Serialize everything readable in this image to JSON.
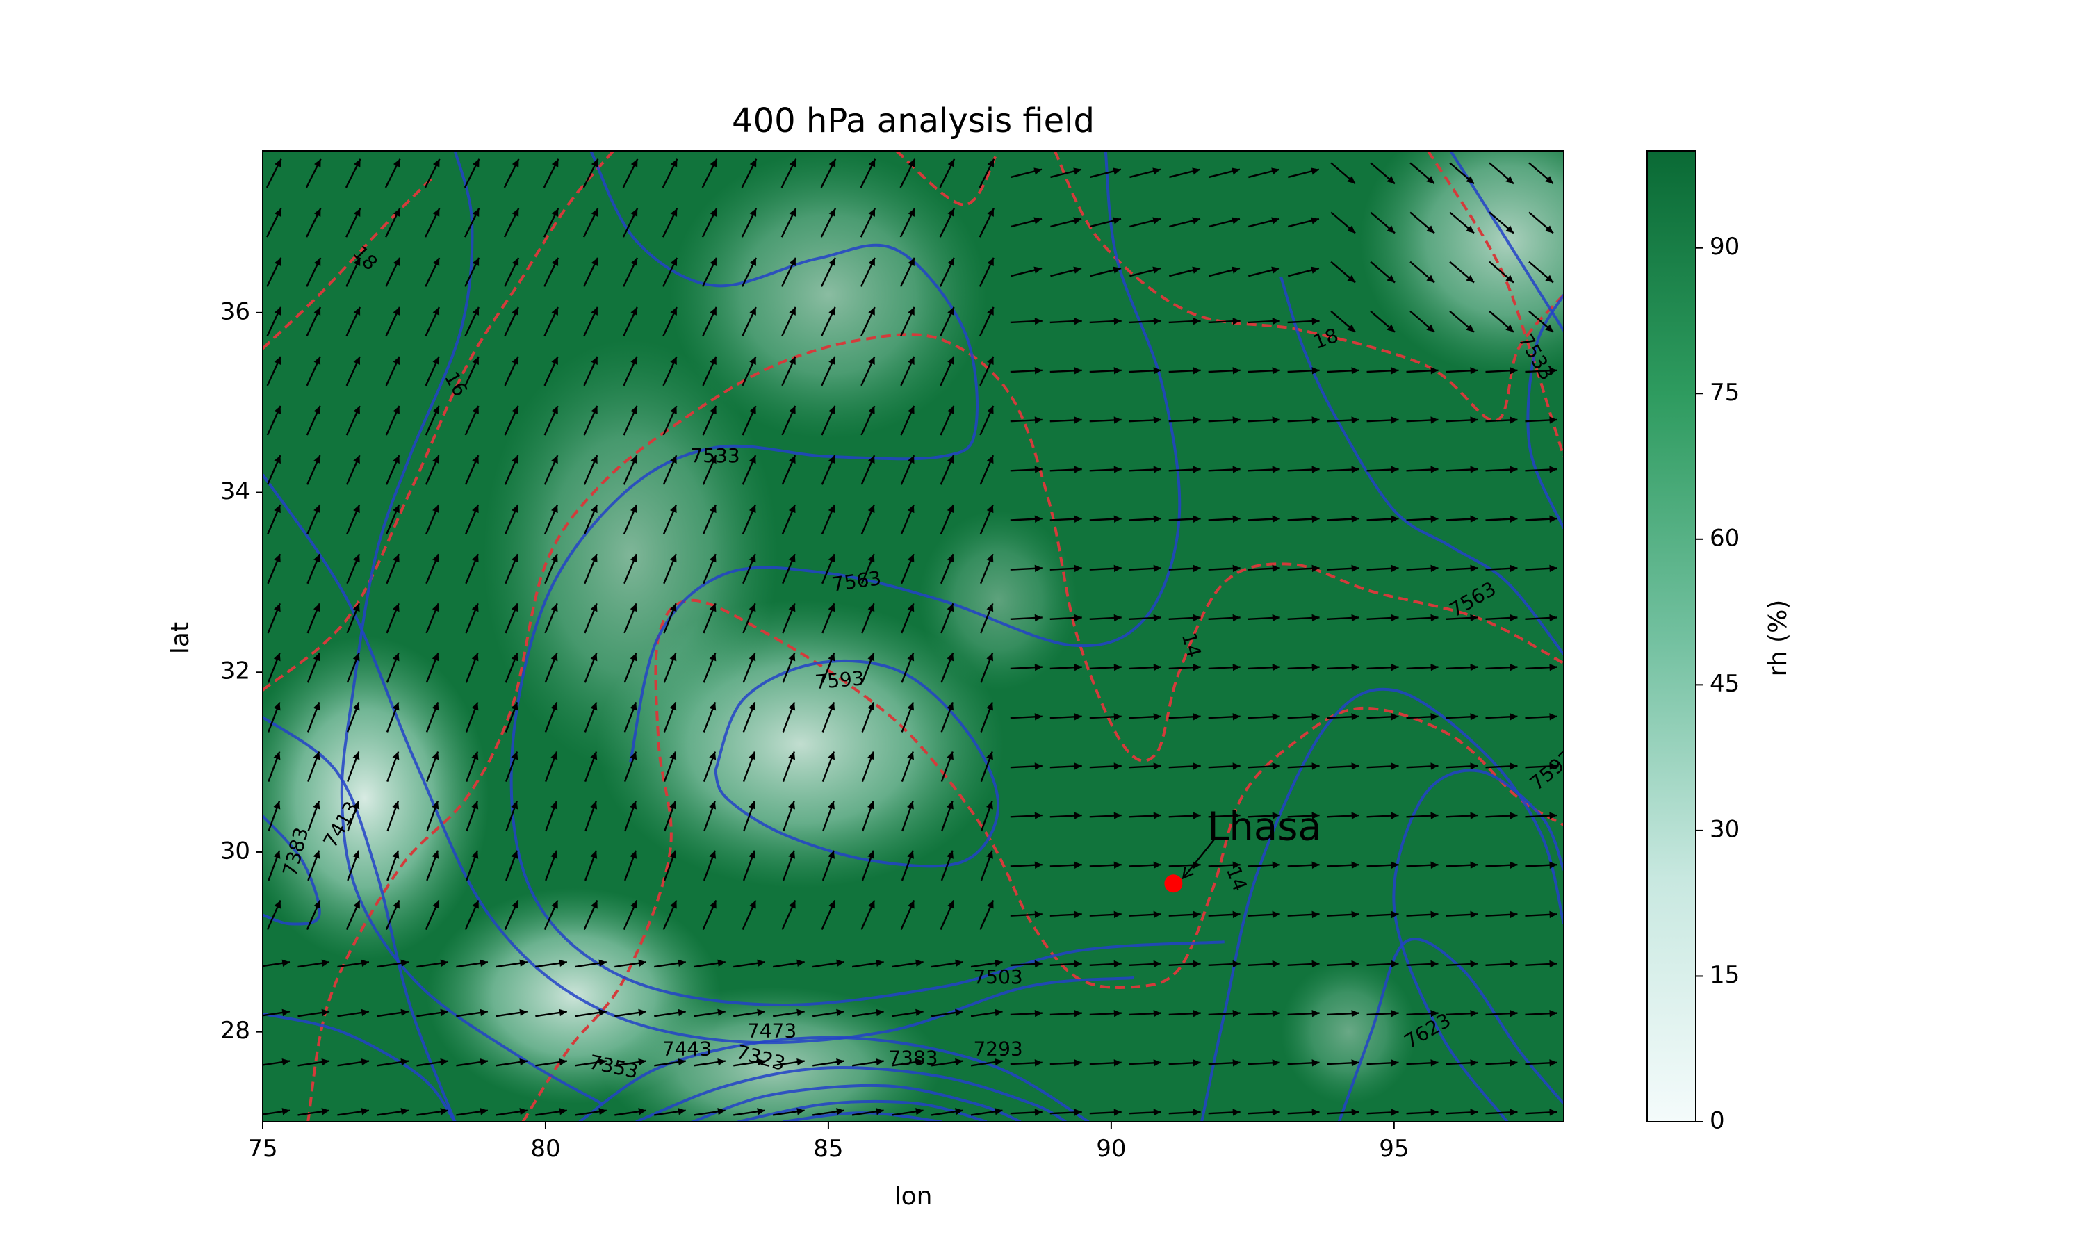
{
  "chart_data": {
    "type": "heatmap",
    "title": "400 hPa analysis field",
    "xlabel": "lon",
    "ylabel": "lat",
    "xlim": [
      75,
      98
    ],
    "ylim": [
      27,
      37.8
    ],
    "xticks": [
      {
        "value": 75,
        "label": "75"
      },
      {
        "value": 80,
        "label": "80"
      },
      {
        "value": 85,
        "label": "85"
      },
      {
        "value": 90,
        "label": "90"
      },
      {
        "value": 95,
        "label": "95"
      }
    ],
    "yticks": [
      {
        "value": 28,
        "label": "28"
      },
      {
        "value": 30,
        "label": "30"
      },
      {
        "value": 32,
        "label": "32"
      },
      {
        "value": 34,
        "label": "34"
      },
      {
        "value": 36,
        "label": "36"
      }
    ],
    "colorbar": {
      "label": "rh (%)",
      "range": [
        0,
        100
      ],
      "colors": [
        "#f4fbfb",
        "#c8e8e0",
        "#72c09f",
        "#2e9b5f",
        "#0a6a35"
      ],
      "ticks": [
        {
          "value": 0,
          "label": "0"
        },
        {
          "value": 15,
          "label": "15"
        },
        {
          "value": 30,
          "label": "30"
        },
        {
          "value": 45,
          "label": "45"
        },
        {
          "value": 60,
          "label": "60"
        },
        {
          "value": 75,
          "label": "75"
        },
        {
          "value": 90,
          "label": "90"
        }
      ]
    },
    "rh_blobs": [
      {
        "lon": 84.5,
        "lat": 31.2,
        "rlon": 3.6,
        "rlat": 1.6,
        "depth": 0.8
      },
      {
        "lon": 81.5,
        "lat": 33.3,
        "rlon": 2.6,
        "rlat": 2.4,
        "depth": 0.5
      },
      {
        "lon": 85.0,
        "lat": 36.2,
        "rlon": 2.8,
        "rlat": 1.6,
        "depth": 0.55
      },
      {
        "lon": 76.8,
        "lat": 30.6,
        "rlon": 2.2,
        "rlat": 1.8,
        "depth": 0.9
      },
      {
        "lon": 80.5,
        "lat": 28.4,
        "rlon": 2.6,
        "rlat": 1.2,
        "depth": 0.85
      },
      {
        "lon": 84.0,
        "lat": 27.6,
        "rlon": 3.0,
        "rlat": 0.9,
        "depth": 0.65
      },
      {
        "lon": 97.0,
        "lat": 36.8,
        "rlon": 2.6,
        "rlat": 1.5,
        "depth": 0.7
      },
      {
        "lon": 94.2,
        "lat": 28.0,
        "rlon": 1.2,
        "rlat": 0.8,
        "depth": 0.4
      },
      {
        "lon": 88.0,
        "lat": 32.8,
        "rlon": 1.4,
        "rlat": 1.0,
        "depth": 0.35
      }
    ],
    "geopotential_contours": {
      "color": "#2342c8",
      "lines": [
        [
          [
            78.4,
            37.8
          ],
          [
            78.7,
            37.0
          ],
          [
            78.5,
            35.8
          ],
          [
            77.6,
            34.4
          ],
          [
            77.0,
            33.3
          ],
          [
            76.6,
            31.8
          ],
          [
            76.4,
            30.6
          ],
          [
            76.7,
            29.5
          ],
          [
            77.8,
            28.5
          ],
          [
            79.6,
            27.7
          ],
          [
            81.0,
            27.2
          ]
        ],
        [
          [
            75,
            34.2
          ],
          [
            76.5,
            32.8
          ],
          [
            77.7,
            31.0
          ],
          [
            79.0,
            29.3
          ],
          [
            80.8,
            28.3
          ],
          [
            83.2,
            27.9
          ],
          [
            86.0,
            28.0
          ],
          [
            88.5,
            28.5
          ],
          [
            90.4,
            28.6
          ]
        ],
        [
          [
            80.8,
            37.8
          ],
          [
            81.6,
            36.8
          ],
          [
            83.0,
            36.3
          ],
          [
            84.8,
            36.6
          ],
          [
            86.2,
            36.7
          ],
          [
            87.4,
            35.8
          ],
          [
            87.6,
            34.7
          ],
          [
            87.0,
            34.4
          ],
          [
            85.0,
            34.4
          ],
          [
            83.0,
            34.5
          ],
          [
            81.4,
            34.0
          ],
          [
            80.0,
            32.8
          ],
          [
            79.4,
            31.0
          ],
          [
            79.8,
            29.5
          ],
          [
            81.4,
            28.6
          ],
          [
            84.0,
            28.3
          ],
          [
            87.0,
            28.5
          ],
          [
            89.4,
            28.9
          ],
          [
            92.0,
            29.0
          ]
        ],
        [
          [
            81.5,
            31.0
          ],
          [
            82.0,
            32.4
          ],
          [
            83.2,
            33.1
          ],
          [
            85.0,
            33.1
          ],
          [
            87.0,
            32.8
          ],
          [
            89.3,
            32.3
          ],
          [
            90.6,
            32.6
          ],
          [
            91.2,
            33.7
          ],
          [
            90.9,
            35.2
          ],
          [
            90.1,
            36.6
          ],
          [
            89.9,
            37.8
          ]
        ],
        [
          [
            83.0,
            30.9
          ],
          [
            83.5,
            31.7
          ],
          [
            84.8,
            32.1
          ],
          [
            86.3,
            32.0
          ],
          [
            87.5,
            31.3
          ],
          [
            88.0,
            30.5
          ],
          [
            87.4,
            29.9
          ],
          [
            85.8,
            29.9
          ],
          [
            84.2,
            30.2
          ],
          [
            83.2,
            30.6
          ],
          [
            83.0,
            30.9
          ]
        ],
        [
          [
            75,
            31.5
          ],
          [
            76.3,
            30.9
          ],
          [
            77.0,
            29.8
          ],
          [
            77.6,
            28.3
          ],
          [
            78.4,
            27.0
          ]
        ],
        [
          [
            75,
            30.4
          ],
          [
            75.7,
            29.9
          ],
          [
            76.0,
            29.3
          ],
          [
            75.5,
            29.2
          ],
          [
            75,
            29.3
          ]
        ],
        [
          [
            75,
            28.2
          ],
          [
            76.4,
            28.0
          ],
          [
            77.8,
            27.5
          ],
          [
            78.4,
            27.0
          ]
        ],
        [
          [
            80.6,
            27.0
          ],
          [
            82.0,
            27.6
          ],
          [
            84.0,
            27.9
          ],
          [
            86.0,
            27.9
          ],
          [
            88.0,
            27.6
          ],
          [
            89.6,
            27.0
          ]
        ],
        [
          [
            81.6,
            27.0
          ],
          [
            83.2,
            27.4
          ],
          [
            85.0,
            27.6
          ],
          [
            87.0,
            27.5
          ],
          [
            88.6,
            27.2
          ],
          [
            89.2,
            27.0
          ]
        ],
        [
          [
            82.6,
            27.0
          ],
          [
            84.0,
            27.3
          ],
          [
            86.0,
            27.4
          ],
          [
            87.6,
            27.2
          ],
          [
            88.4,
            27.0
          ]
        ],
        [
          [
            83.4,
            27.0
          ],
          [
            85.0,
            27.2
          ],
          [
            86.6,
            27.2
          ],
          [
            87.8,
            27.0
          ]
        ],
        [
          [
            84.2,
            27.0
          ],
          [
            85.6,
            27.1
          ],
          [
            87.0,
            27.0
          ]
        ],
        [
          [
            94.0,
            26.95
          ],
          [
            94.6,
            28.0
          ],
          [
            95.2,
            29.0
          ],
          [
            96.2,
            28.7
          ],
          [
            97.2,
            27.8
          ],
          [
            98,
            27.2
          ]
        ],
        [
          [
            97.0,
            27.0
          ],
          [
            95.8,
            28.0
          ],
          [
            95.0,
            29.4
          ],
          [
            95.5,
            30.6
          ],
          [
            96.5,
            30.9
          ],
          [
            97.6,
            30.4
          ],
          [
            98,
            29.8
          ]
        ],
        [
          [
            91.6,
            27.0
          ],
          [
            92.0,
            28.2
          ],
          [
            92.6,
            29.8
          ],
          [
            93.8,
            31.4
          ],
          [
            95.0,
            31.8
          ],
          [
            96.6,
            31.1
          ],
          [
            97.6,
            30.2
          ],
          [
            98,
            29.2
          ]
        ],
        [
          [
            98,
            32.2
          ],
          [
            97.0,
            33.0
          ],
          [
            96.0,
            33.4
          ],
          [
            95.0,
            33.8
          ],
          [
            94.0,
            34.8
          ],
          [
            93.4,
            35.6
          ],
          [
            93.0,
            36.4
          ]
        ],
        [
          [
            98,
            35.8
          ],
          [
            97.2,
            36.6
          ],
          [
            96.6,
            37.2
          ],
          [
            96.0,
            37.8
          ]
        ],
        [
          [
            98,
            33.6
          ],
          [
            97.4,
            34.5
          ],
          [
            97.5,
            35.6
          ],
          [
            98,
            36.2
          ]
        ]
      ],
      "labels": [
        {
          "text": "7533",
          "lon": 83.0,
          "lat": 34.4,
          "angle": 0
        },
        {
          "text": "7563",
          "lon": 85.5,
          "lat": 33.0,
          "angle": 8
        },
        {
          "text": "7593",
          "lon": 85.2,
          "lat": 31.9,
          "angle": 5
        },
        {
          "text": "7503",
          "lon": 88.0,
          "lat": 28.6,
          "angle": 0
        },
        {
          "text": "7473",
          "lon": 84.0,
          "lat": 28.0,
          "angle": 0
        },
        {
          "text": "7443",
          "lon": 82.5,
          "lat": 27.8,
          "angle": 0
        },
        {
          "text": "7383",
          "lon": 86.5,
          "lat": 27.7,
          "angle": 0
        },
        {
          "text": "7353",
          "lon": 81.2,
          "lat": 27.6,
          "angle": -12
        },
        {
          "text": "7323",
          "lon": 83.8,
          "lat": 27.7,
          "angle": -15
        },
        {
          "text": "7413",
          "lon": 76.4,
          "lat": 30.3,
          "angle": 60
        },
        {
          "text": "7383",
          "lon": 75.6,
          "lat": 30.0,
          "angle": 75
        },
        {
          "text": "7563",
          "lon": 96.4,
          "lat": 32.8,
          "angle": 30
        },
        {
          "text": "7623",
          "lon": 95.6,
          "lat": 28.0,
          "angle": 30
        },
        {
          "text": "7593",
          "lon": 97.8,
          "lat": 30.9,
          "angle": 40
        },
        {
          "text": "7533",
          "lon": 97.5,
          "lat": 35.5,
          "angle": -60
        }
      ]
    },
    "temperature_contours": {
      "color": "#d43b3b",
      "lines": [
        [
          [
            75,
            35.6
          ],
          [
            76.0,
            36.2
          ],
          [
            77.2,
            37.0
          ],
          [
            78.0,
            37.5
          ]
        ],
        [
          [
            75,
            31.8
          ],
          [
            76.5,
            32.6
          ],
          [
            77.6,
            34.0
          ],
          [
            78.6,
            35.4
          ],
          [
            79.6,
            36.4
          ],
          [
            80.4,
            37.2
          ],
          [
            81.2,
            37.8
          ]
        ],
        [
          [
            75.8,
            27.0
          ],
          [
            76.2,
            28.4
          ],
          [
            77.4,
            29.8
          ],
          [
            78.6,
            30.6
          ],
          [
            79.4,
            31.6
          ],
          [
            80.0,
            33.2
          ],
          [
            81.0,
            34.1
          ],
          [
            82.4,
            34.8
          ],
          [
            84.0,
            35.4
          ],
          [
            85.6,
            35.7
          ],
          [
            87.0,
            35.7
          ],
          [
            88.2,
            35.1
          ],
          [
            88.9,
            33.9
          ],
          [
            89.4,
            32.4
          ],
          [
            90.2,
            31.2
          ],
          [
            90.8,
            31.1
          ],
          [
            91.2,
            32.0
          ],
          [
            92.0,
            33.0
          ],
          [
            93.2,
            33.2
          ],
          [
            94.6,
            32.9
          ],
          [
            96.5,
            32.6
          ],
          [
            98,
            32.1
          ]
        ],
        [
          [
            79.6,
            27.0
          ],
          [
            80.4,
            27.8
          ],
          [
            81.4,
            28.6
          ],
          [
            82.2,
            30.0
          ],
          [
            82.0,
            31.2
          ],
          [
            82.0,
            32.4
          ],
          [
            82.6,
            32.8
          ],
          [
            84.0,
            32.4
          ],
          [
            85.5,
            31.8
          ],
          [
            86.6,
            31.2
          ],
          [
            87.8,
            30.2
          ],
          [
            88.6,
            29.2
          ],
          [
            89.4,
            28.6
          ],
          [
            90.4,
            28.5
          ],
          [
            91.2,
            28.7
          ],
          [
            91.8,
            29.6
          ],
          [
            92.3,
            30.6
          ],
          [
            93.2,
            31.2
          ],
          [
            94.4,
            31.6
          ],
          [
            96.0,
            31.3
          ],
          [
            97.2,
            30.6
          ],
          [
            98,
            30.3
          ]
        ],
        [
          [
            89.0,
            37.8
          ],
          [
            89.8,
            36.8
          ],
          [
            91.4,
            36.0
          ],
          [
            93.4,
            35.8
          ],
          [
            95.6,
            35.4
          ],
          [
            96.8,
            34.8
          ],
          [
            97.2,
            35.6
          ],
          [
            98,
            36.2
          ]
        ],
        [
          [
            86.2,
            37.8
          ],
          [
            87.4,
            37.2
          ],
          [
            88.0,
            37.8
          ]
        ],
        [
          [
            95.6,
            37.8
          ],
          [
            96.8,
            36.6
          ],
          [
            97.4,
            35.6
          ],
          [
            97.8,
            34.8
          ],
          [
            98,
            34.4
          ]
        ]
      ],
      "labels": [
        {
          "text": "18",
          "lon": 76.8,
          "lat": 36.6,
          "angle": -45
        },
        {
          "text": "16",
          "lon": 78.4,
          "lat": 35.2,
          "angle": -60
        },
        {
          "text": "18",
          "lon": 93.8,
          "lat": 35.7,
          "angle": 20
        },
        {
          "text": "14",
          "lon": 91.4,
          "lat": 32.3,
          "angle": -75
        },
        {
          "text": "14",
          "lon": 92.2,
          "lat": 29.7,
          "angle": -70
        },
        {
          "text": "7293",
          "lon": 88.0,
          "lat": 27.8,
          "angle": 0
        }
      ]
    },
    "wind_vectors": {
      "color": "#000000",
      "lon_start": 75.2,
      "lon_step": 0.7,
      "lat_start": 27.1,
      "lat_step": 0.55
    },
    "annotations": [
      {
        "text": "Lhasa",
        "lon": 91.1,
        "lat": 29.65,
        "text_lon": 91.7,
        "text_lat": 30.25,
        "marker_color": "#ff0000"
      }
    ],
    "grid": false
  }
}
